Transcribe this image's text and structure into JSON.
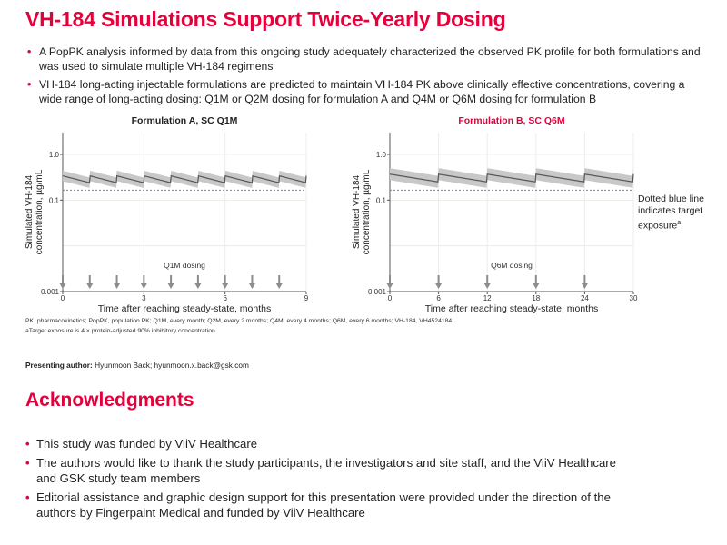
{
  "title": "VH-184 Simulations Support Twice-Yearly Dosing",
  "bullets": [
    "A PopPK analysis informed by data from this ongoing study adequately characterized the observed PK profile for both formulations and was used to simulate multiple VH-184 regimens",
    "VH-184 long-acting injectable formulations are predicted to maintain VH-184 PK above clinically effective concentrations, covering a wide range of long-acting dosing: Q1M or Q2M dosing for formulation A and Q4M or Q6M dosing for formulation B"
  ],
  "legend_note": {
    "text": "Dotted blue line indicates target exposure",
    "superscript": "a"
  },
  "footnotes": [
    "PK, pharmacokinetics; PopPK, population PK; Q1M, every month; Q2M, every 2 months; Q4M, every 4 months; Q6M, every 6 months; VH-184, VH4524184.",
    "aTarget exposure is 4 × protein-adjusted 90% inhibitory concentration."
  ],
  "presenting_author": {
    "label": "Presenting author:",
    "value": "Hyunmoon Back; hyunmoon.x.back@gsk.com"
  },
  "ack_title": "Acknowledgments",
  "ack_bullets": [
    "This study was funded by ViiV Healthcare",
    "The authors would like to thank the study participants, the investigators and site staff, and the ViiV Healthcare and GSK study team members",
    "Editorial assistance and graphic design support for this presentation were provided under the direction of the authors by Fingerpaint Medical and funded by ViiV Healthcare"
  ],
  "chart_data": [
    {
      "type": "line",
      "title": "Formulation A, SC Q1M",
      "title_color": "#222222",
      "xlabel": "Time after reaching steady-state, months",
      "ylabel": "Simulated VH-184 concentration, µg/mL",
      "y_scale": "log",
      "xlim": [
        0,
        9
      ],
      "ylim": [
        0.001,
        3
      ],
      "x_ticks": [
        0,
        3,
        6,
        9
      ],
      "y_ticks": [
        {
          "value": 0.001,
          "label": "0.001"
        },
        {
          "value": 0.1,
          "label": "0.1"
        },
        {
          "value": 1,
          "label": "1.0"
        }
      ],
      "dose_label": "Q1M dosing",
      "dose_times": [
        0,
        1,
        2,
        3,
        4,
        5,
        6,
        7,
        8
      ],
      "dose_interval": 1,
      "peak": 0.34,
      "trough": 0.24,
      "band_ratio": 1.3,
      "target_exposure": 0.165,
      "colors": {
        "median": "#555555",
        "band": "#c8c8c8",
        "target": "#7777dd",
        "arrow": "#8c8c8c"
      },
      "grid": true
    },
    {
      "type": "line",
      "title": "Formulation B, SC Q6M",
      "title_color": "#e4003b",
      "xlabel": "Time after reaching steady-state, months",
      "ylabel": "Simulated VH-184 concentration, µg/mL",
      "y_scale": "log",
      "xlim": [
        0,
        30
      ],
      "ylim": [
        0.001,
        3
      ],
      "x_ticks": [
        0,
        6,
        12,
        18,
        24,
        30
      ],
      "y_ticks": [
        {
          "value": 0.001,
          "label": "0.001"
        },
        {
          "value": 0.1,
          "label": "0.1"
        },
        {
          "value": 1,
          "label": "1.0"
        }
      ],
      "dose_label": "Q6M dosing",
      "dose_times": [
        0,
        6,
        12,
        18,
        24
      ],
      "dose_interval": 6,
      "peak": 0.37,
      "trough": 0.25,
      "band_ratio": 1.35,
      "target_exposure": 0.165,
      "colors": {
        "median": "#555555",
        "band": "#c8c8c8",
        "target": "#7777dd",
        "arrow": "#8c8c8c"
      },
      "grid": true
    }
  ]
}
